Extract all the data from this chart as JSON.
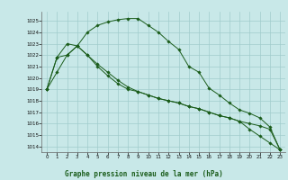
{
  "title": "Graphe pression niveau de la mer (hPa)",
  "bg_color": "#c8e8e8",
  "grid_color": "#a0cccc",
  "line_color": "#1a5c1a",
  "x_ticks": [
    0,
    1,
    2,
    3,
    4,
    5,
    6,
    7,
    8,
    9,
    10,
    11,
    12,
    13,
    14,
    15,
    16,
    17,
    18,
    19,
    20,
    21,
    22,
    23
  ],
  "ylim": [
    1013.5,
    1025.8
  ],
  "yticks": [
    1014,
    1015,
    1016,
    1017,
    1018,
    1019,
    1020,
    1021,
    1022,
    1023,
    1024,
    1025
  ],
  "series": [
    [
      1019.0,
      1020.5,
      1022.0,
      1022.8,
      1024.0,
      1024.6,
      1024.9,
      1025.1,
      1025.2,
      1025.2,
      1024.6,
      1024.0,
      1023.2,
      1022.5,
      1021.0,
      1020.5,
      1019.1,
      1018.5,
      1017.8,
      1017.2,
      1016.9,
      1016.5,
      1015.7,
      1013.7
    ],
    [
      1019.0,
      1021.8,
      1022.0,
      1022.8,
      1022.0,
      1021.0,
      1020.2,
      1019.5,
      1019.0,
      1018.8,
      1018.5,
      1018.2,
      1018.0,
      1017.8,
      1017.5,
      1017.3,
      1017.0,
      1016.7,
      1016.5,
      1016.2,
      1016.0,
      1015.8,
      1015.5,
      1013.7
    ],
    [
      1019.0,
      1021.8,
      1023.0,
      1022.8,
      1022.0,
      1021.2,
      1020.5,
      1019.8,
      1019.2,
      1018.8,
      1018.5,
      1018.2,
      1018.0,
      1017.8,
      1017.5,
      1017.3,
      1017.0,
      1016.7,
      1016.5,
      1016.2,
      1015.5,
      1014.9,
      1014.3,
      1013.7
    ]
  ]
}
